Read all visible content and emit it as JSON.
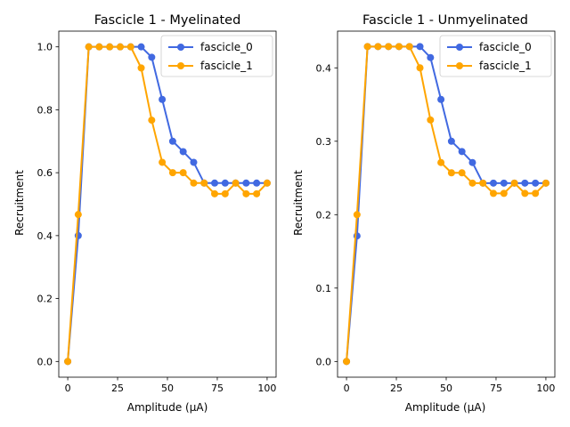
{
  "chart_data": [
    {
      "type": "line",
      "title": "Fascicle 1 - Myelinated",
      "xlabel": "Amplitude (µA)",
      "ylabel": "Recruitment",
      "xlim": [
        -4.5,
        104.5
      ],
      "ylim": [
        -0.05,
        1.05
      ],
      "xticks": [
        "0",
        "25",
        "50",
        "75",
        "100"
      ],
      "yticks": [
        "0.0",
        "0.2",
        "0.4",
        "0.6",
        "0.8",
        "1.0"
      ],
      "legend": "top-right",
      "x": [
        0,
        5.26,
        10.53,
        15.79,
        21.05,
        26.32,
        31.58,
        36.84,
        42.11,
        47.37,
        52.63,
        57.89,
        63.16,
        68.42,
        73.68,
        78.95,
        84.21,
        89.47,
        94.74,
        100
      ],
      "series": [
        {
          "name": "fascicle_0",
          "color": "#4169e1",
          "values": [
            0.0,
            0.4,
            1.0,
            1.0,
            1.0,
            1.0,
            1.0,
            1.0,
            0.967,
            0.833,
            0.7,
            0.667,
            0.633,
            0.567,
            0.567,
            0.567,
            0.567,
            0.567,
            0.567,
            0.567
          ]
        },
        {
          "name": "fascicle_1",
          "color": "#ffa500",
          "values": [
            0.0,
            0.467,
            1.0,
            1.0,
            1.0,
            1.0,
            1.0,
            0.933,
            0.767,
            0.633,
            0.6,
            0.6,
            0.567,
            0.567,
            0.533,
            0.533,
            0.567,
            0.533,
            0.533,
            0.567
          ]
        }
      ]
    },
    {
      "type": "line",
      "title": "Fascicle 1 - Unmyelinated",
      "xlabel": "Amplitude (µA)",
      "ylabel": "Recruitment",
      "xlim": [
        -4.5,
        104.5
      ],
      "ylim": [
        -0.0214,
        0.45
      ],
      "xticks": [
        "0",
        "25",
        "50",
        "75",
        "100"
      ],
      "yticks": [
        "0.0",
        "0.1",
        "0.2",
        "0.3",
        "0.4"
      ],
      "legend": "top-right",
      "x": [
        0,
        5.26,
        10.53,
        15.79,
        21.05,
        26.32,
        31.58,
        36.84,
        42.11,
        47.37,
        52.63,
        57.89,
        63.16,
        68.42,
        73.68,
        78.95,
        84.21,
        89.47,
        94.74,
        100
      ],
      "series": [
        {
          "name": "fascicle_0",
          "color": "#4169e1",
          "values": [
            0.0,
            0.171,
            0.429,
            0.429,
            0.429,
            0.429,
            0.429,
            0.429,
            0.414,
            0.357,
            0.3,
            0.286,
            0.271,
            0.243,
            0.243,
            0.243,
            0.243,
            0.243,
            0.243,
            0.243
          ]
        },
        {
          "name": "fascicle_1",
          "color": "#ffa500",
          "values": [
            0.0,
            0.2,
            0.429,
            0.429,
            0.429,
            0.429,
            0.429,
            0.4,
            0.329,
            0.271,
            0.257,
            0.257,
            0.243,
            0.243,
            0.229,
            0.229,
            0.243,
            0.229,
            0.229,
            0.243
          ]
        }
      ]
    }
  ]
}
